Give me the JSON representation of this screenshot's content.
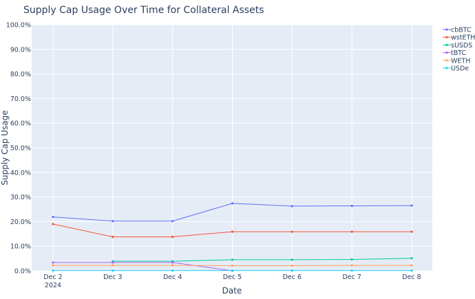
{
  "chart_data": {
    "type": "line",
    "title": "Supply Cap Usage Over Time for Collateral Assets",
    "xlabel": "Date",
    "ylabel": "Supply Cap Usage",
    "x": [
      "Dec 2",
      "Dec 3",
      "Dec 4",
      "Dec 5",
      "Dec 6",
      "Dec 7",
      "Dec 8"
    ],
    "x_sublabel_first": "2024",
    "ylim": [
      0,
      100
    ],
    "yticks": [
      0,
      10,
      20,
      30,
      40,
      50,
      60,
      70,
      80,
      90,
      100
    ],
    "ytick_labels": [
      "0.0%",
      "10.0%",
      "20.0%",
      "30.0%",
      "40.0%",
      "50.0%",
      "60.0%",
      "70.0%",
      "80.0%",
      "90.0%",
      "100.0%"
    ],
    "grid": true,
    "legend_position": "top-right",
    "plot_background": "#e5ecf6",
    "series": [
      {
        "name": "cbBTC",
        "color": "#636efa",
        "values": [
          21.9,
          20.2,
          20.2,
          27.4,
          26.3,
          26.4,
          26.5
        ]
      },
      {
        "name": "wstETH",
        "color": "#ef553b",
        "values": [
          19.0,
          13.8,
          13.8,
          15.9,
          15.9,
          15.9,
          15.9
        ]
      },
      {
        "name": "sUSDS",
        "color": "#00cc96",
        "values": [
          null,
          3.9,
          3.9,
          4.5,
          4.5,
          4.6,
          5.1
        ]
      },
      {
        "name": "tBTC",
        "color": "#ab63fa",
        "values": [
          3.4,
          3.4,
          3.4,
          0.0,
          null,
          null,
          null
        ]
      },
      {
        "name": "WETH",
        "color": "#ffa15a",
        "values": [
          2.2,
          2.2,
          2.2,
          2.1,
          2.1,
          2.2,
          2.2
        ]
      },
      {
        "name": "USDe",
        "color": "#19d3f3",
        "values": [
          0.1,
          0.1,
          0.1,
          0.1,
          0.1,
          0.1,
          0.1
        ]
      }
    ]
  }
}
